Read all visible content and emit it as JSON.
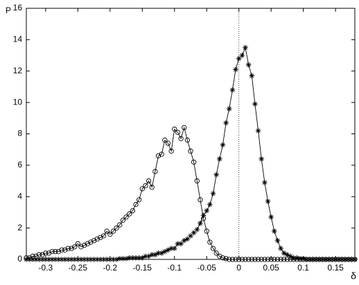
{
  "chart_data": {
    "type": "line",
    "y_label": "P",
    "x_label": "δ",
    "x": [
      -0.33,
      -0.325,
      -0.32,
      -0.315,
      -0.31,
      -0.305,
      -0.3,
      -0.295,
      -0.29,
      -0.285,
      -0.28,
      -0.275,
      -0.27,
      -0.265,
      -0.26,
      -0.255,
      -0.25,
      -0.245,
      -0.24,
      -0.235,
      -0.23,
      -0.225,
      -0.22,
      -0.215,
      -0.21,
      -0.205,
      -0.2,
      -0.195,
      -0.19,
      -0.185,
      -0.18,
      -0.175,
      -0.17,
      -0.165,
      -0.16,
      -0.155,
      -0.15,
      -0.145,
      -0.14,
      -0.135,
      -0.13,
      -0.125,
      -0.12,
      -0.115,
      -0.11,
      -0.105,
      -0.1,
      -0.095,
      -0.09,
      -0.085,
      -0.08,
      -0.075,
      -0.07,
      -0.065,
      -0.06,
      -0.055,
      -0.05,
      -0.045,
      -0.04,
      -0.035,
      -0.03,
      -0.025,
      -0.02,
      -0.015,
      -0.01,
      -0.005,
      0,
      0.005,
      0.01,
      0.015,
      0.02,
      0.025,
      0.03,
      0.035,
      0.04,
      0.045,
      0.05,
      0.055,
      0.06,
      0.065,
      0.07,
      0.075,
      0.08,
      0.085,
      0.09,
      0.095,
      0.1,
      0.105,
      0.11,
      0.115,
      0.12,
      0.125,
      0.13,
      0.135,
      0.14,
      0.145,
      0.15,
      0.155,
      0.16,
      0.165,
      0.17,
      0.175,
      0.18
    ],
    "series": [
      {
        "marker": "circle",
        "color": "#000000",
        "values": [
          0.1,
          0.1,
          0.2,
          0.2,
          0.3,
          0.3,
          0.4,
          0.4,
          0.5,
          0.5,
          0.5,
          0.6,
          0.6,
          0.7,
          0.7,
          0.8,
          1.0,
          0.8,
          0.9,
          1.0,
          1.1,
          1.2,
          1.3,
          1.4,
          1.5,
          1.8,
          1.6,
          1.8,
          2.0,
          2.2,
          2.5,
          2.7,
          2.9,
          3.1,
          3.5,
          3.8,
          4.5,
          4.7,
          5.0,
          4.6,
          5.6,
          6.6,
          6.7,
          7.6,
          7.4,
          6.9,
          8.3,
          8.1,
          7.7,
          8.4,
          7.6,
          6.9,
          6.2,
          5.0,
          3.8,
          2.6,
          1.8,
          1.1,
          0.7,
          0.4,
          0.2,
          0.1,
          0.05,
          0,
          0,
          0,
          0,
          0,
          0,
          0,
          0,
          0,
          0,
          0,
          0,
          0,
          0,
          0,
          0,
          0,
          0,
          0,
          0,
          0,
          0,
          0,
          0,
          0,
          0,
          0,
          0,
          0,
          0,
          0,
          0,
          0,
          0,
          0,
          0,
          0,
          0,
          0,
          0
        ]
      },
      {
        "marker": "asterisk",
        "color": "#000000",
        "values": [
          0,
          0,
          0,
          0,
          0,
          0,
          0,
          0,
          0,
          0,
          0,
          0,
          0,
          0,
          0,
          0,
          0,
          0,
          0,
          0,
          0,
          0,
          0,
          0,
          0,
          0,
          0,
          0,
          0,
          0.05,
          0.05,
          0.05,
          0.1,
          0.1,
          0.1,
          0.1,
          0.1,
          0.2,
          0.2,
          0.3,
          0.3,
          0.4,
          0.4,
          0.5,
          0.6,
          0.7,
          0.7,
          1.0,
          1.0,
          1.2,
          1.3,
          1.5,
          1.7,
          1.9,
          2.3,
          2.8,
          3.1,
          3.5,
          4.2,
          5.4,
          6.4,
          7.3,
          8.7,
          9.6,
          10.8,
          12.1,
          12.8,
          13.0,
          13.5,
          12.4,
          11.7,
          9.9,
          8.2,
          6.4,
          4.9,
          3.7,
          2.7,
          1.8,
          1.2,
          0.7,
          0.4,
          0.3,
          0.2,
          0.1,
          0.1,
          0.05,
          0.05,
          0,
          0,
          0,
          0,
          0,
          0,
          0,
          0,
          0,
          0,
          0,
          0,
          0,
          0,
          0,
          0
        ]
      }
    ],
    "reference_x": 0,
    "xlim": [
      -0.33,
      0.18
    ],
    "ylim": [
      0,
      16
    ],
    "xticks": [
      -0.3,
      -0.25,
      -0.2,
      -0.15,
      -0.1,
      -0.05,
      0,
      0.05,
      0.1,
      0.15
    ],
    "yticks": [
      0,
      2,
      4,
      6,
      8,
      10,
      12,
      14,
      16
    ]
  }
}
